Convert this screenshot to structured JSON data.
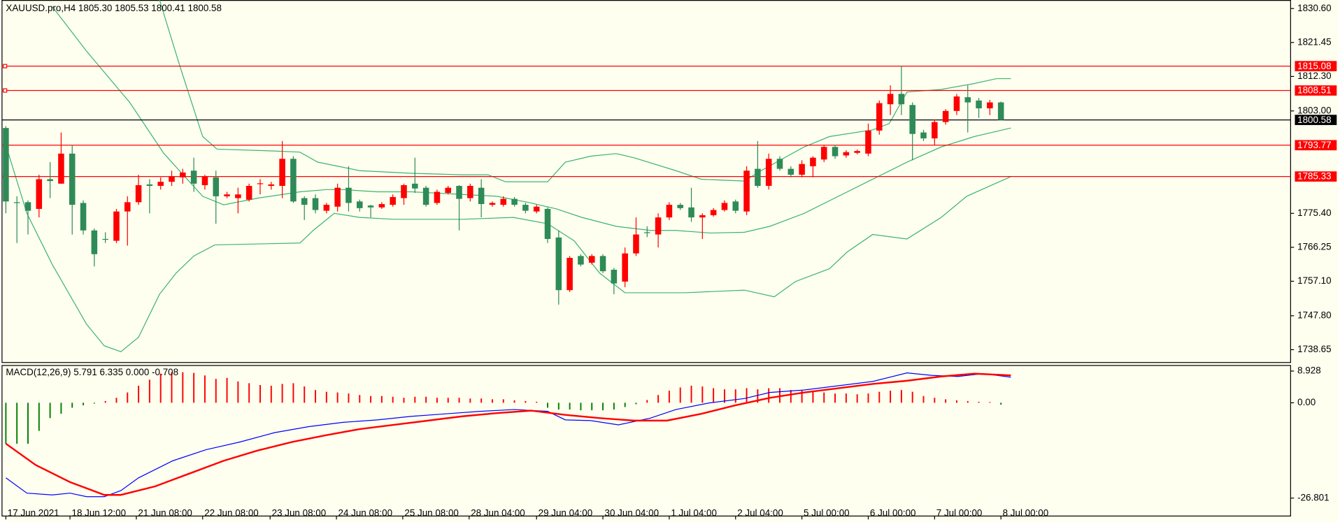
{
  "chart_data": [
    {
      "type": "candlestick",
      "title": "XAUUSD.pro,H4  1805.30 1805.53 1800.41 1800.58",
      "bull_color": "#ff0000",
      "bear_color": "#2e8b57",
      "xlim": [
        -0.386,
        116.2
      ],
      "ylim": [
        1735.2,
        1832.9
      ],
      "yticks": [
        {
          "value": 1830.6,
          "label": "1830.60"
        },
        1821.45,
        {
          "value": 1812.3,
          "label": "1812.30"
        },
        {
          "value": 1803,
          "label": "1803.00"
        },
        {
          "value": 1775.4,
          "label": "1775.40"
        },
        1766.25,
        {
          "value": 1757.1,
          "label": "1757.10"
        },
        {
          "value": 1747.8,
          "label": "1747.80"
        },
        1738.65
      ],
      "xticks": [
        {
          "value": 0,
          "label": "17 Jun 2021"
        },
        {
          "value": 5.8,
          "label": "18 Jun 12:00"
        },
        {
          "value": 11.8,
          "label": "21 Jun 08:00"
        },
        {
          "value": 17.8,
          "label": "22 Jun 08:00"
        },
        {
          "value": 23.9,
          "label": "23 Jun 08:00"
        },
        {
          "value": 29.9,
          "label": "24 Jun 08:00"
        },
        {
          "value": 35.9,
          "label": "25 Jun 08:00"
        },
        {
          "value": 41.9,
          "label": "28 Jun 04:00"
        },
        {
          "value": 48,
          "label": "29 Jun 04:00"
        },
        {
          "value": 54,
          "label": "30 Jun 04:00"
        },
        {
          "value": 60,
          "label": "1 Jul 04:00"
        },
        {
          "value": 66,
          "label": "2 Jul 04:00"
        },
        {
          "value": 72,
          "label": "5 Jul 00:00"
        },
        {
          "value": 78,
          "label": "6 Jul 00:00"
        },
        {
          "value": 84,
          "label": "7 Jul 00:00"
        },
        {
          "value": 90,
          "label": "8 Jul 00:00"
        }
      ],
      "levels": [
        1815.08,
        1808.51,
        1793.77,
        1785.33
      ],
      "level_color": "#ff0000",
      "current_price": 1800.58,
      "current_color": "#000000",
      "band_color": "#3cb371",
      "candles": [
        [
          1798.4,
          1798.9,
          1775.4,
          1778.6
        ],
        [
          1778.4,
          1780.0,
          1767.4,
          1778.2
        ],
        [
          1778.4,
          1778.9,
          1769.7,
          1776.1
        ],
        [
          1776.6,
          1785.8,
          1774.3,
          1784.6
        ],
        [
          1784.6,
          1789.2,
          1779.5,
          1784.1
        ],
        [
          1783.4,
          1797.2,
          1783.4,
          1791.5
        ],
        [
          1791.5,
          1793.8,
          1769.7,
          1777.7
        ],
        [
          1778.2,
          1778.9,
          1769.7,
          1770.8
        ],
        [
          1770.8,
          1771.3,
          1761.1,
          1764.4
        ],
        [
          1768.5,
          1770.3,
          1767.4,
          1768.3
        ],
        [
          1768.0,
          1776.6,
          1767.4,
          1775.9
        ],
        [
          1775.9,
          1780.0,
          1766.7,
          1778.4
        ],
        [
          1778.4,
          1785.8,
          1777.7,
          1783.0
        ],
        [
          1783.2,
          1784.6,
          1775.4,
          1782.8
        ],
        [
          1782.8,
          1785.1,
          1781.8,
          1783.9
        ],
        [
          1783.9,
          1786.9,
          1782.8,
          1785.3
        ],
        [
          1785.1,
          1787.4,
          1783.4,
          1786.4
        ],
        [
          1786.9,
          1790.4,
          1781.2,
          1783.4
        ],
        [
          1783.0,
          1785.8,
          1781.8,
          1785.3
        ],
        [
          1785.1,
          1786.9,
          1772.6,
          1780.0
        ],
        [
          1780.0,
          1781.2,
          1779.5,
          1780.5
        ],
        [
          1779.5,
          1782.3,
          1775.4,
          1780.5
        ],
        [
          1779.1,
          1783.4,
          1778.6,
          1782.8
        ],
        [
          1783.4,
          1784.6,
          1780.5,
          1783.5
        ],
        [
          1782.8,
          1783.9,
          1781.8,
          1783.2
        ],
        [
          1782.8,
          1794.9,
          1779.5,
          1790.1
        ],
        [
          1790.1,
          1790.8,
          1778.2,
          1778.6
        ],
        [
          1779.5,
          1780.0,
          1773.6,
          1777.7
        ],
        [
          1779.5,
          1780.5,
          1775.4,
          1776.3
        ],
        [
          1776.1,
          1778.2,
          1775.4,
          1777.7
        ],
        [
          1777.2,
          1783.4,
          1775.9,
          1782.3
        ],
        [
          1782.3,
          1788.1,
          1775.9,
          1778.2
        ],
        [
          1778.6,
          1779.1,
          1775.9,
          1776.8
        ],
        [
          1777.5,
          1777.7,
          1774.3,
          1777.0
        ],
        [
          1777.0,
          1778.4,
          1776.6,
          1777.9
        ],
        [
          1777.7,
          1780.5,
          1777.2,
          1779.8
        ],
        [
          1779.5,
          1783.4,
          1777.7,
          1783.0
        ],
        [
          1783.4,
          1790.4,
          1780.9,
          1782.1
        ],
        [
          1782.3,
          1782.8,
          1777.2,
          1777.7
        ],
        [
          1778.2,
          1781.8,
          1777.7,
          1781.2
        ],
        [
          1780.9,
          1782.8,
          1780.5,
          1782.3
        ],
        [
          1782.8,
          1783.0,
          1770.8,
          1779.3
        ],
        [
          1779.5,
          1783.4,
          1778.6,
          1782.8
        ],
        [
          1782.3,
          1784.6,
          1774.3,
          1777.9
        ],
        [
          1777.7,
          1778.6,
          1777.2,
          1778.2
        ],
        [
          1777.7,
          1780.0,
          1777.2,
          1779.3
        ],
        [
          1779.3,
          1779.8,
          1777.2,
          1777.7
        ],
        [
          1777.7,
          1778.2,
          1775.4,
          1776.1
        ],
        [
          1775.9,
          1777.7,
          1775.4,
          1777.2
        ],
        [
          1776.6,
          1777.0,
          1767.4,
          1768.5
        ],
        [
          1768.9,
          1770.8,
          1750.8,
          1754.7
        ],
        [
          1754.7,
          1763.9,
          1754.2,
          1763.4
        ],
        [
          1763.9,
          1764.4,
          1761.1,
          1761.6
        ],
        [
          1762.1,
          1764.4,
          1761.6,
          1763.9
        ],
        [
          1763.9,
          1764.4,
          1759.3,
          1759.8
        ],
        [
          1760.2,
          1760.7,
          1753.6,
          1756.5
        ],
        [
          1757.0,
          1766.2,
          1755.5,
          1764.6
        ],
        [
          1764.6,
          1774.3,
          1763.9,
          1769.7
        ],
        [
          1770.3,
          1771.9,
          1769.0,
          1770.1
        ],
        [
          1769.7,
          1775.4,
          1766.2,
          1774.3
        ],
        [
          1774.3,
          1778.4,
          1773.6,
          1777.7
        ],
        [
          1777.7,
          1778.2,
          1776.3,
          1776.8
        ],
        [
          1777.0,
          1782.3,
          1773.1,
          1774.3
        ],
        [
          1774.3,
          1775.4,
          1768.5,
          1774.9
        ],
        [
          1774.9,
          1776.8,
          1774.5,
          1776.3
        ],
        [
          1776.3,
          1778.9,
          1775.9,
          1778.2
        ],
        [
          1778.6,
          1779.1,
          1775.4,
          1776.1
        ],
        [
          1775.9,
          1788.1,
          1774.9,
          1786.9
        ],
        [
          1787.4,
          1794.9,
          1782.3,
          1782.8
        ],
        [
          1782.8,
          1791.5,
          1781.8,
          1790.1
        ],
        [
          1790.1,
          1790.8,
          1786.9,
          1787.4
        ],
        [
          1787.4,
          1788.1,
          1785.1,
          1785.8
        ],
        [
          1785.8,
          1789.7,
          1785.1,
          1788.7
        ],
        [
          1788.1,
          1790.8,
          1785.1,
          1790.4
        ],
        [
          1789.9,
          1793.8,
          1789.2,
          1793.3
        ],
        [
          1793.3,
          1793.8,
          1790.1,
          1790.8
        ],
        [
          1791.0,
          1792.4,
          1790.4,
          1791.9
        ],
        [
          1791.7,
          1792.6,
          1791.3,
          1792.2
        ],
        [
          1791.5,
          1799.6,
          1790.8,
          1797.7
        ],
        [
          1797.7,
          1805.8,
          1796.6,
          1805.1
        ],
        [
          1804.8,
          1809.9,
          1801.9,
          1807.6
        ],
        [
          1807.6,
          1815.2,
          1801.9,
          1804.8
        ],
        [
          1804.6,
          1805.3,
          1789.7,
          1796.8
        ],
        [
          1797.2,
          1797.9,
          1794.9,
          1795.6
        ],
        [
          1795.6,
          1800.7,
          1793.8,
          1800.0
        ],
        [
          1800.0,
          1803.5,
          1799.3,
          1803.0
        ],
        [
          1803.0,
          1807.6,
          1801.9,
          1806.9
        ],
        [
          1806.7,
          1809.9,
          1797.2,
          1805.3
        ],
        [
          1805.8,
          1806.5,
          1801.1,
          1803.7
        ],
        [
          1803.7,
          1806.0,
          1801.9,
          1805.3
        ],
        [
          1805.3,
          1805.53,
          1800.41,
          1800.58
        ]
      ],
      "bands": [
        {
          "x": [
            13.9,
            15.8,
            17.8,
            19.1,
            24.3,
            26.6,
            28.2,
            32.0,
            36.7,
            41.3,
            43.6,
            45.2,
            49.0,
            50.6,
            52.9,
            55.2,
            56.8,
            60.6,
            62.9,
            66.8,
            68.3,
            72.2,
            74.5,
            78.4,
            79.9,
            81.5,
            84.6,
            87.6,
            89.6,
            90.9
          ],
          "values": [
            1832.9,
            1814.5,
            1796.1,
            1792.7,
            1792.2,
            1791.9,
            1789.2,
            1786.9,
            1786.2,
            1785.8,
            1785.8,
            1783.9,
            1783.9,
            1789.2,
            1790.8,
            1791.5,
            1790.4,
            1786.9,
            1784.6,
            1784.1,
            1786.9,
            1793.3,
            1796.1,
            1797.9,
            1799.6,
            1808.1,
            1808.8,
            1810.4,
            1811.7,
            1811.7
          ]
        },
        {
          "x": [
            4.2,
            7.3,
            11.2,
            14.3,
            17.8,
            19.7,
            22.8,
            26.6,
            29.0,
            30.5,
            33.6,
            36.7,
            41.3,
            44.4,
            47.5,
            49.8,
            52.1,
            55.2,
            58.3,
            60.6,
            63.7,
            66.8,
            69.1,
            72.2,
            75.3,
            78.4,
            81.5,
            84.6,
            87.6,
            90.9
          ],
          "values": [
            1831.1,
            1819.1,
            1805.3,
            1791.5,
            1780.0,
            1777.7,
            1779.5,
            1781.2,
            1781.8,
            1781.8,
            1781.2,
            1781.2,
            1780.5,
            1780.0,
            1778.2,
            1776.6,
            1774.3,
            1771.9,
            1770.8,
            1770.8,
            1770.1,
            1770.3,
            1771.9,
            1775.4,
            1780.0,
            1784.6,
            1789.2,
            1793.3,
            1796.1,
            1798.4
          ]
        },
        {
          "x": [
            0,
            1.9,
            4.2,
            7.3,
            8.9,
            10.4,
            12.0,
            13.9,
            15.4,
            17.0,
            18.9,
            26.6,
            27.8,
            29.7,
            32.0,
            35.1,
            41.3,
            45.9,
            49.0,
            51.4,
            53.7,
            56.0,
            61.4,
            66.8,
            69.5,
            71.4,
            74.5,
            76.1,
            78.4,
            81.5,
            84.6,
            86.9,
            90.9
          ],
          "values": [
            1793.8,
            1775.4,
            1761.6,
            1745.5,
            1739.7,
            1738.1,
            1742.0,
            1753.6,
            1759.3,
            1763.9,
            1766.9,
            1767.4,
            1770.8,
            1775.4,
            1774.3,
            1773.8,
            1773.8,
            1774.3,
            1772.6,
            1768.0,
            1759.3,
            1754.0,
            1754.0,
            1754.7,
            1752.9,
            1757.0,
            1760.5,
            1765.0,
            1769.7,
            1768.5,
            1774.3,
            1780.0,
            1785.3
          ]
        }
      ]
    },
    {
      "type": "macd",
      "title": "MACD(12,26,9) 5.791 6.335 0.000 -0.708",
      "ylim": [
        -31.84,
        10.61
      ],
      "yticks": [
        8.928,
        {
          "value": 0,
          "label": "0.00"
        },
        -26.801
      ],
      "up_color": "#ff0000",
      "down_color": "#008000",
      "histogram": [
        -11.5,
        -11.5,
        -11.5,
        -7.9,
        -4.3,
        -3.1,
        -1.4,
        -0.7,
        -0.2,
        0.5,
        1.4,
        2.9,
        4.8,
        6.5,
        8.2,
        8.6,
        8.6,
        8.4,
        7.7,
        6.7,
        7.0,
        6.0,
        5.5,
        5.0,
        4.8,
        5.3,
        5.5,
        4.6,
        3.6,
        3.1,
        2.9,
        2.6,
        2.2,
        1.9,
        1.9,
        1.7,
        1.4,
        1.7,
        1.7,
        1.4,
        1.4,
        1.4,
        1.2,
        1.2,
        1.0,
        1.0,
        0.7,
        0.5,
        0.3,
        -1.4,
        -1.9,
        -1.9,
        -2.1,
        -2.1,
        -2.1,
        -1.9,
        -1.2,
        -0.4,
        0.8,
        2.2,
        3.4,
        4.3,
        4.8,
        4.6,
        4.1,
        3.8,
        3.8,
        4.1,
        3.8,
        4.1,
        4.1,
        3.6,
        3.4,
        3.4,
        2.9,
        2.6,
        2.6,
        2.4,
        2.6,
        3.1,
        3.4,
        3.6,
        3.1,
        1.9,
        1.4,
        1.0,
        0.7,
        0.5,
        0.3,
        0.2,
        -0.5
      ],
      "series": [
        {
          "color": "#0000ff",
          "x": [
            0,
            1.9,
            4.2,
            5.8,
            7.3,
            8.9,
            10.4,
            12.0,
            15.1,
            18.1,
            21.2,
            24.3,
            27.4,
            30.5,
            33.6,
            36.7,
            39.8,
            42.9,
            46.0,
            49.0,
            50.6,
            52.9,
            55.4,
            58.3,
            60.6,
            63.7,
            66.8,
            69.1,
            72.2,
            75.3,
            78.4,
            81.5,
            83.8,
            86.1,
            88.4,
            90.9
          ],
          "values": [
            -21.1,
            -25.4,
            -25.9,
            -25.4,
            -26.4,
            -26.4,
            -24.7,
            -21.1,
            -16.3,
            -13.2,
            -11.0,
            -8.4,
            -6.7,
            -5.5,
            -4.8,
            -3.8,
            -3.1,
            -2.4,
            -1.9,
            -2.4,
            -4.8,
            -5.0,
            -6.2,
            -4.3,
            -1.9,
            0.0,
            1.2,
            2.9,
            3.6,
            4.8,
            6.0,
            8.4,
            7.7,
            7.4,
            8.2,
            7.2
          ]
        },
        {
          "color": "#ff0000",
          "x": [
            0,
            2.7,
            5.8,
            8.9,
            10.4,
            13.5,
            16.6,
            19.7,
            22.8,
            25.9,
            29.0,
            32.0,
            35.1,
            38.2,
            41.3,
            44.4,
            47.5,
            50.6,
            53.7,
            56.8,
            59.8,
            62.9,
            66.0,
            69.1,
            72.2,
            75.3,
            78.4,
            81.5,
            84.6,
            87.6,
            90.9
          ],
          "values": [
            -11.5,
            -17.5,
            -22.3,
            -25.9,
            -25.9,
            -23.5,
            -19.9,
            -16.3,
            -13.4,
            -11.0,
            -9.1,
            -7.4,
            -6.2,
            -5.0,
            -3.8,
            -2.9,
            -2.2,
            -3.4,
            -4.3,
            -5.0,
            -5.0,
            -3.1,
            -0.7,
            1.4,
            2.9,
            4.1,
            5.3,
            6.2,
            7.4,
            8.2,
            7.7
          ]
        }
      ]
    }
  ]
}
